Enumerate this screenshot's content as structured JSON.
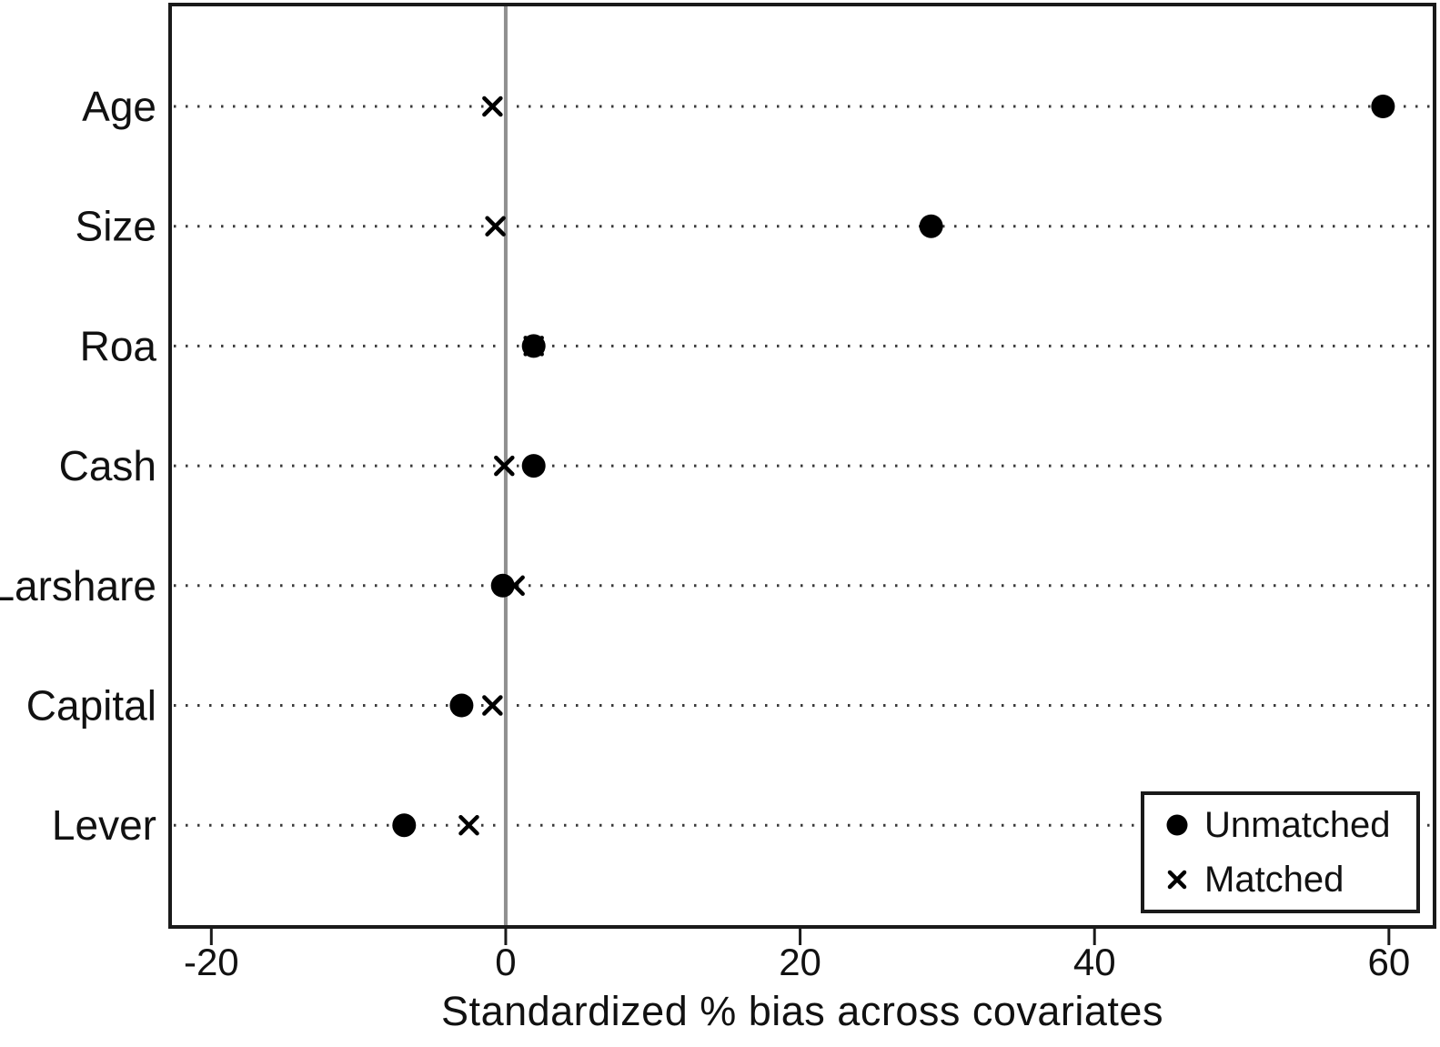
{
  "figure": {
    "xlabel": "Standardized % bias across covariates"
  },
  "legend": {
    "items": [
      {
        "label": "Unmatched",
        "marker": "filled-circle"
      },
      {
        "label": "Matched",
        "marker": "x-cross"
      }
    ]
  },
  "colors": {
    "marker": "#000000",
    "text": "#111111",
    "frame": "#1a1a1a",
    "zero_line": "#8f8f8f",
    "grid_dot": "#3a3a3a",
    "background": "#ffffff"
  },
  "chart_data": {
    "type": "scatter",
    "subtype": "horizontal-dot-plot",
    "title": "",
    "xlabel": "Standardized % bias across covariates",
    "ylabel": "",
    "categories": [
      "Age",
      "Size",
      "Roa",
      "Cash",
      "Larshare",
      "Capital",
      "Lever"
    ],
    "series": [
      {
        "name": "Unmatched",
        "marker": "filled-circle",
        "values": [
          59.6,
          28.9,
          1.9,
          1.9,
          -0.2,
          -3.0,
          -6.9
        ]
      },
      {
        "name": "Matched",
        "marker": "x-cross",
        "values": [
          -0.9,
          -0.7,
          1.9,
          -0.1,
          0.6,
          -0.9,
          -2.5
        ]
      }
    ],
    "x_ticks": [
      -20,
      0,
      20,
      40,
      60
    ],
    "x_tick_labels": [
      "-20",
      "0",
      "20",
      "40",
      "60"
    ],
    "xlim": [
      -22.8,
      63.1
    ],
    "reference_line_x": 0,
    "grid": "dotted horizontal line per category",
    "legend_position": "bottom-right inside plot"
  }
}
